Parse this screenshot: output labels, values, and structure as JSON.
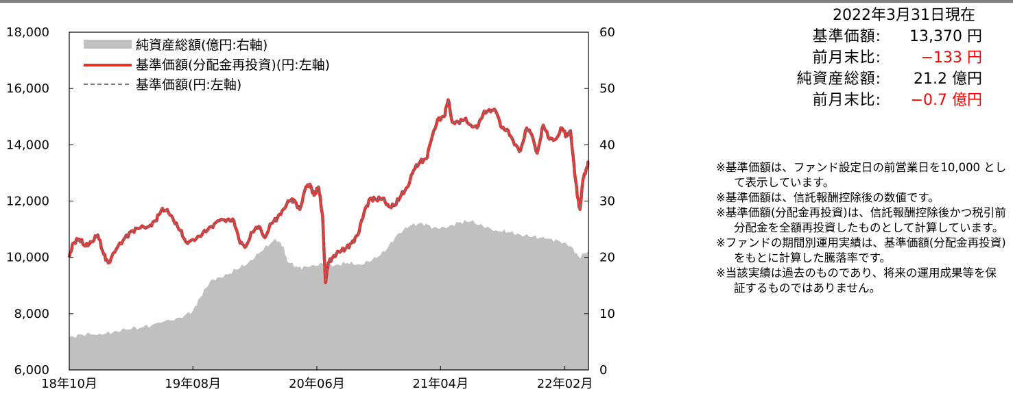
{
  "info": {
    "as_of": "2022年3月31日現在",
    "rows": [
      {
        "label": "基準価額:",
        "value": "13,370 円",
        "color": "#000000"
      },
      {
        "label": "前月末比:",
        "value": "−133 円",
        "color": "#ff0000"
      },
      {
        "label": "純資産総額:",
        "value": "21.2 億円",
        "color": "#000000"
      },
      {
        "label": "前月末比:",
        "value": "−0.7 億円",
        "color": "#ff0000"
      }
    ]
  },
  "notes": [
    "※基準価額は、ファンド設定日の前営業日を10,000 として表示しています。",
    "※基準価額は、信託報酬控除後の数値です。",
    "※基準価額(分配金再投資)は、信託報酬控除後かつ税引前分配金を全額再投資したものとして計算しています。",
    "※ファンドの期間別運用実績は、基準価額(分配金再投資)をもとに計算した騰落率です。",
    "※当該実績は過去のものであり、将来の運用成果等を保証するものではありません。"
  ],
  "chart_data": {
    "type": "line+area",
    "x_tick_labels": [
      "18年10月",
      "19年08月",
      "20年06月",
      "21年04月",
      "22年02月"
    ],
    "y_left": {
      "range": [
        6000,
        18000
      ],
      "ticks": [
        "6,000",
        "8,000",
        "10,000",
        "12,000",
        "14,000",
        "16,000",
        "18,000"
      ]
    },
    "y_right": {
      "range": [
        0,
        60
      ],
      "ticks": [
        "0",
        "10",
        "20",
        "30",
        "40",
        "50",
        "60"
      ]
    },
    "grid": false,
    "legend_position": "top-left",
    "colors": {
      "area": "#c0c0c0",
      "nav_reinvested": "#e8312d",
      "nav": "#6e7884"
    },
    "series": [
      {
        "name": "純資産総額(億円:右軸)",
        "kind": "area",
        "axis": "right",
        "points": [
          [
            "2018-10-01",
            5.7
          ],
          [
            "2018-11-01",
            6.3
          ],
          [
            "2018-12-15",
            6.4
          ],
          [
            "2019-01-15",
            6.6
          ],
          [
            "2019-02-15",
            7.2
          ],
          [
            "2019-04-01",
            7.6
          ],
          [
            "2019-05-15",
            8.4
          ],
          [
            "2019-07-01",
            9.3
          ],
          [
            "2019-08-01",
            10.5
          ],
          [
            "2019-08-20",
            13.0
          ],
          [
            "2019-09-15",
            16.0
          ],
          [
            "2019-10-15",
            16.5
          ],
          [
            "2019-11-15",
            17.8
          ],
          [
            "2019-12-15",
            19.0
          ],
          [
            "2020-01-15",
            21.0
          ],
          [
            "2020-02-20",
            23.3
          ],
          [
            "2020-03-10",
            22.0
          ],
          [
            "2020-03-20",
            19.3
          ],
          [
            "2020-04-15",
            18.2
          ],
          [
            "2020-05-15",
            18.3
          ],
          [
            "2020-06-15",
            18.9
          ],
          [
            "2020-07-15",
            18.6
          ],
          [
            "2020-08-15",
            19.0
          ],
          [
            "2020-09-15",
            18.7
          ],
          [
            "2020-10-15",
            19.5
          ],
          [
            "2020-11-15",
            21.0
          ],
          [
            "2020-12-15",
            24.0
          ],
          [
            "2021-01-15",
            25.6
          ],
          [
            "2021-02-15",
            26.1
          ],
          [
            "2021-03-15",
            25.3
          ],
          [
            "2021-04-15",
            25.2
          ],
          [
            "2021-05-15",
            26.2
          ],
          [
            "2021-06-15",
            26.4
          ],
          [
            "2021-07-15",
            25.5
          ],
          [
            "2021-08-15",
            24.8
          ],
          [
            "2021-09-15",
            24.5
          ],
          [
            "2021-10-15",
            24.0
          ],
          [
            "2021-11-15",
            23.7
          ],
          [
            "2021-12-15",
            23.3
          ],
          [
            "2022-01-15",
            23.0
          ],
          [
            "2022-02-15",
            22.0
          ],
          [
            "2022-03-08",
            20.0
          ],
          [
            "2022-03-31",
            21.2
          ]
        ]
      },
      {
        "name": "基準価額(分配金再投資)(円:左軸)",
        "kind": "line",
        "axis": "left",
        "points": [
          [
            "2018-10-01",
            10000
          ],
          [
            "2018-10-10",
            10500
          ],
          [
            "2018-10-25",
            10650
          ],
          [
            "2018-11-10",
            10400
          ],
          [
            "2018-11-25",
            10550
          ],
          [
            "2018-12-10",
            10800
          ],
          [
            "2018-12-25",
            10100
          ],
          [
            "2019-01-05",
            9800
          ],
          [
            "2019-01-25",
            10300
          ],
          [
            "2019-02-15",
            10700
          ],
          [
            "2019-03-05",
            10950
          ],
          [
            "2019-03-25",
            11050
          ],
          [
            "2019-04-15",
            11100
          ],
          [
            "2019-05-01",
            11300
          ],
          [
            "2019-05-15",
            11650
          ],
          [
            "2019-05-30",
            11700
          ],
          [
            "2019-06-15",
            11300
          ],
          [
            "2019-07-01",
            10950
          ],
          [
            "2019-07-15",
            10550
          ],
          [
            "2019-08-05",
            10600
          ],
          [
            "2019-08-25",
            10850
          ],
          [
            "2019-09-15",
            11100
          ],
          [
            "2019-10-05",
            11300
          ],
          [
            "2019-10-25",
            11350
          ],
          [
            "2019-11-10",
            11300
          ],
          [
            "2019-11-25",
            10500
          ],
          [
            "2019-12-10",
            10400
          ],
          [
            "2019-12-25",
            10900
          ],
          [
            "2020-01-10",
            11100
          ],
          [
            "2020-01-25",
            10700
          ],
          [
            "2020-02-10",
            11200
          ],
          [
            "2020-02-25",
            11400
          ],
          [
            "2020-03-10",
            11700
          ],
          [
            "2020-03-25",
            12000
          ],
          [
            "2020-04-05",
            12050
          ],
          [
            "2020-04-20",
            11700
          ],
          [
            "2020-05-05",
            12500
          ],
          [
            "2020-05-15",
            12600
          ],
          [
            "2020-05-25",
            12200
          ],
          [
            "2020-06-05",
            12500
          ],
          [
            "2020-06-15",
            11500
          ],
          [
            "2020-06-22",
            9100
          ],
          [
            "2020-06-29",
            9800
          ],
          [
            "2020-07-10",
            10000
          ],
          [
            "2020-07-25",
            10200
          ],
          [
            "2020-08-10",
            10300
          ],
          [
            "2020-08-25",
            10500
          ],
          [
            "2020-09-10",
            10800
          ],
          [
            "2020-09-25",
            11600
          ],
          [
            "2020-10-10",
            12100
          ],
          [
            "2020-10-25",
            12050
          ],
          [
            "2020-11-10",
            12100
          ],
          [
            "2020-11-25",
            11800
          ],
          [
            "2020-12-10",
            11850
          ],
          [
            "2020-12-25",
            12200
          ],
          [
            "2021-01-10",
            12500
          ],
          [
            "2021-01-25",
            13100
          ],
          [
            "2021-02-10",
            13400
          ],
          [
            "2021-02-25",
            13500
          ],
          [
            "2021-03-10",
            14200
          ],
          [
            "2021-03-25",
            14900
          ],
          [
            "2021-04-10",
            15000
          ],
          [
            "2021-04-20",
            15600
          ],
          [
            "2021-04-30",
            14800
          ],
          [
            "2021-05-15",
            14800
          ],
          [
            "2021-05-30",
            14900
          ],
          [
            "2021-06-15",
            14700
          ],
          [
            "2021-06-30",
            14600
          ],
          [
            "2021-07-15",
            15100
          ],
          [
            "2021-07-30",
            15250
          ],
          [
            "2021-08-15",
            15200
          ],
          [
            "2021-08-30",
            14600
          ],
          [
            "2021-09-15",
            14500
          ],
          [
            "2021-09-30",
            14000
          ],
          [
            "2021-10-15",
            13800
          ],
          [
            "2021-10-30",
            14600
          ],
          [
            "2021-11-10",
            14400
          ],
          [
            "2021-11-25",
            13700
          ],
          [
            "2021-12-10",
            14700
          ],
          [
            "2021-12-25",
            14200
          ],
          [
            "2022-01-10",
            14200
          ],
          [
            "2022-01-25",
            14600
          ],
          [
            "2022-02-05",
            14300
          ],
          [
            "2022-02-15",
            14500
          ],
          [
            "2022-02-25",
            13000
          ],
          [
            "2022-03-05",
            12100
          ],
          [
            "2022-03-10",
            11700
          ],
          [
            "2022-03-18",
            12800
          ],
          [
            "2022-03-25",
            13100
          ],
          [
            "2022-03-31",
            13370
          ]
        ]
      },
      {
        "name": "基準価額(円:左軸)",
        "kind": "line",
        "axis": "left",
        "dash": true,
        "same_as_previous": true
      }
    ]
  }
}
